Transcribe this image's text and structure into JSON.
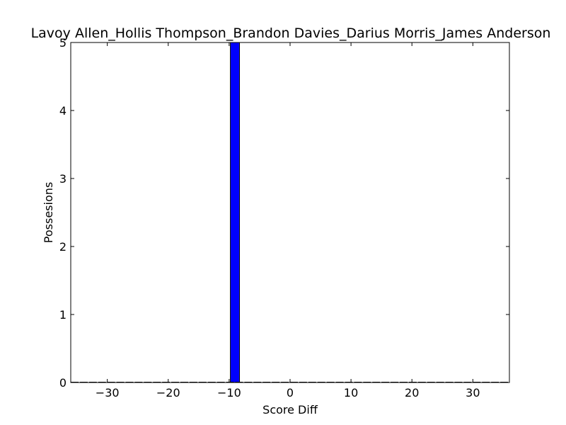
{
  "chart_data": {
    "type": "bar",
    "title": "Lavoy Allen_Hollis Thompson_Brandon Davies_Darius Morris_James Anderson",
    "xlabel": "Score Diff",
    "ylabel": "Possesions",
    "xlim": [
      -36,
      36
    ],
    "ylim": [
      0,
      5
    ],
    "xticks": [
      -30,
      -20,
      -10,
      0,
      10,
      20,
      30
    ],
    "xtick_labels": [
      "−30",
      "−20",
      "−10",
      "0",
      "10",
      "20",
      "30"
    ],
    "yticks": [
      0,
      1,
      2,
      3,
      4,
      5
    ],
    "ytick_labels": [
      "0",
      "1",
      "2",
      "3",
      "4",
      "5"
    ],
    "bin_width": 1.5,
    "bins": [
      {
        "start": -9.8,
        "end": -8.3,
        "value": 5
      }
    ],
    "bar_color": "#0000ff",
    "edge_color": "#000000",
    "grid": false
  }
}
